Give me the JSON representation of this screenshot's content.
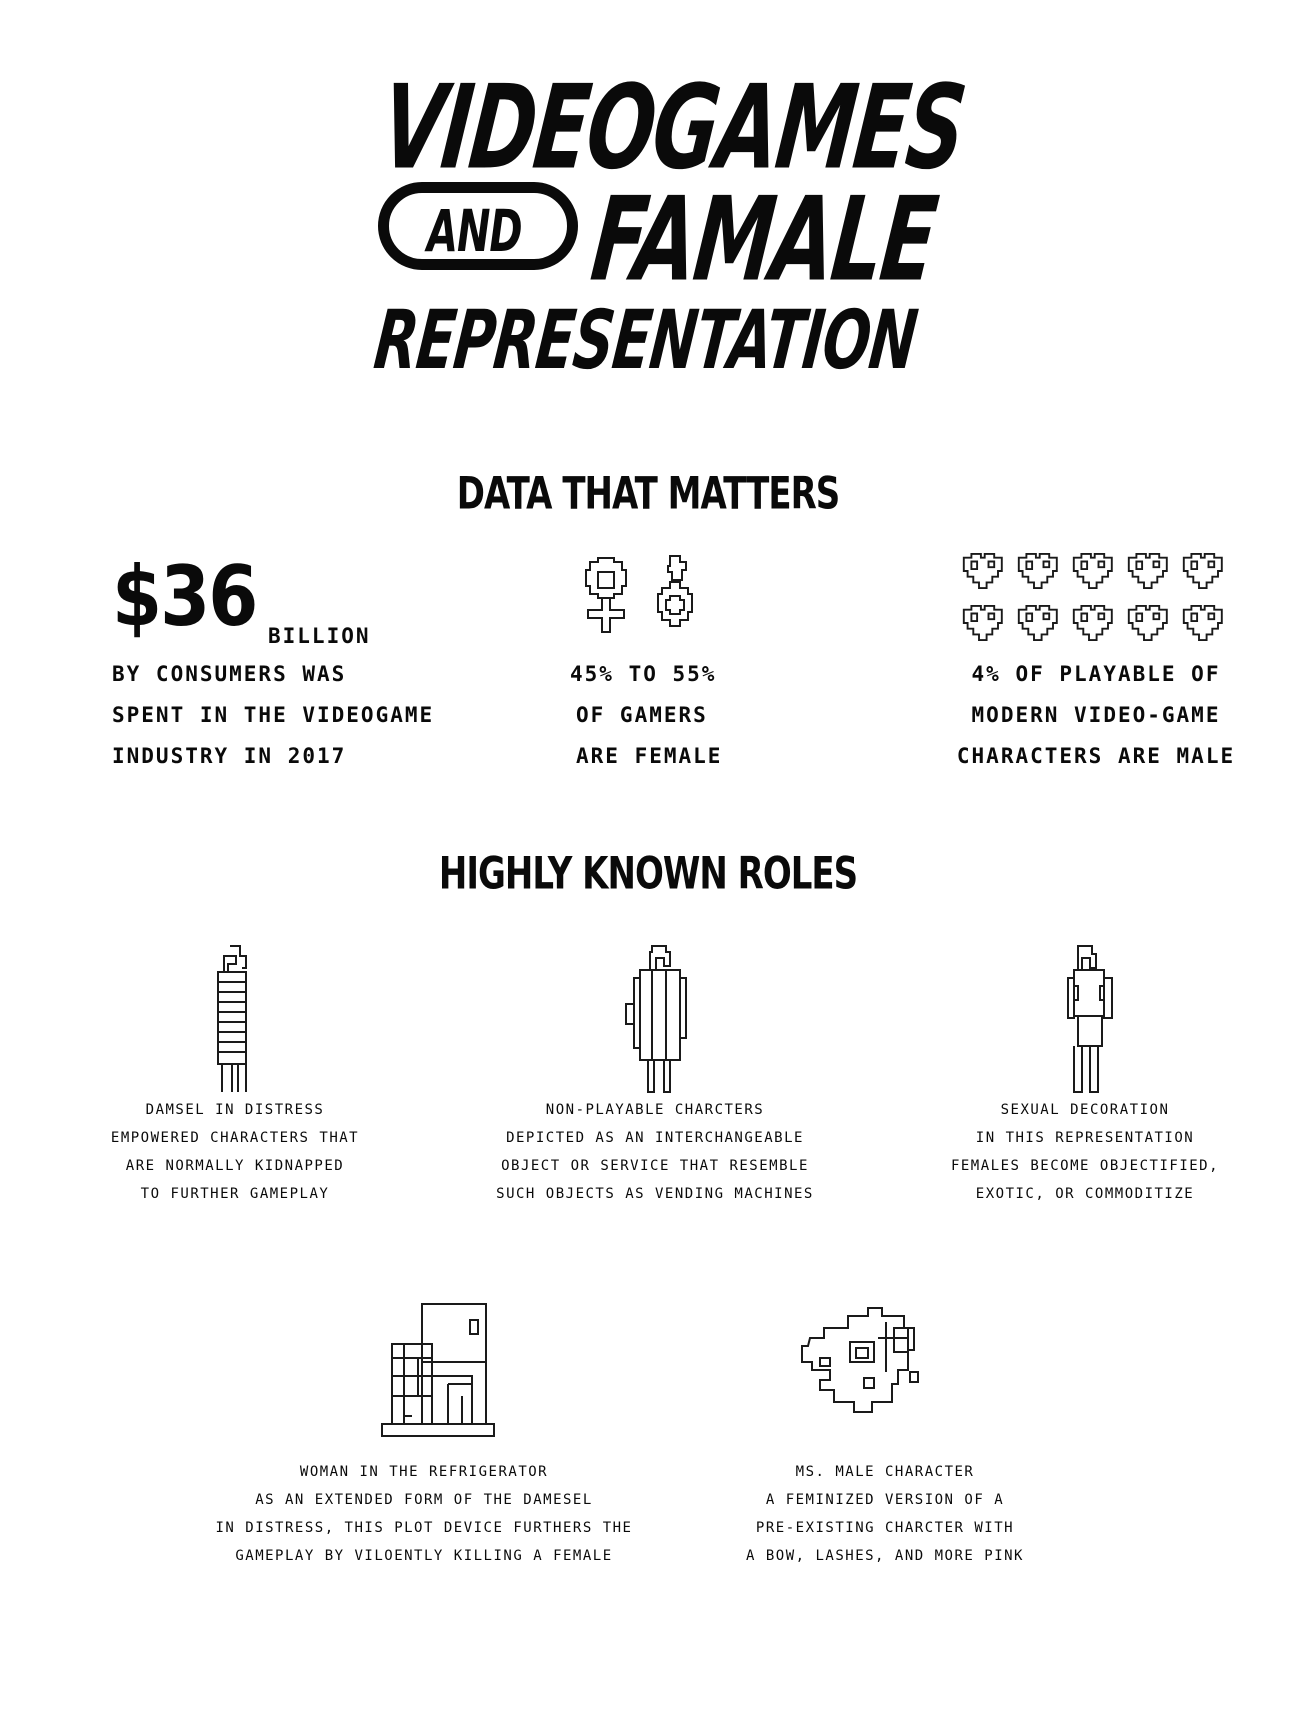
{
  "title": {
    "line1": "VIDEOGAMES",
    "pill_word": "AND",
    "line2": "FAMALE",
    "line3": "REPRESENTATION"
  },
  "sections": {
    "data_heading": "DATA THAT MATTERS",
    "roles_heading": "HIGHLY KNOWN ROLES"
  },
  "stats": {
    "spending": {
      "amount": "$36",
      "unit": "BILLION",
      "lines": [
        "BY CONSUMERS WAS",
        "SPENT IN THE VIDEOGAME",
        "INDUSTRY IN  2017"
      ]
    },
    "gamers": {
      "icon": "female-male-symbols-icon",
      "lines": [
        "45% TO 55%",
        "OF GAMERS",
        "ARE FEMALE"
      ]
    },
    "characters": {
      "icon": "pixel-hearts-icon",
      "hearts_count": 10,
      "lines": [
        "4% OF PLAYABLE OF",
        "MODERN VIDEO-GAME",
        "CHARACTERS ARE MALE"
      ]
    }
  },
  "roles": [
    {
      "icon": "damsel-figure-icon",
      "lines": [
        "DAMSEL IN DISTRESS",
        "EMPOWERED CHARACTERS THAT",
        "ARE NORMALLY KIDNAPPED",
        "TO FURTHER GAMEPLAY"
      ]
    },
    {
      "icon": "npc-figure-icon",
      "lines": [
        "NON-PLAYABLE CHARCTERS",
        "DEPICTED AS AN INTERCHANGEABLE",
        "OBJECT OR SERVICE THAT RESEMBLE",
        "SUCH OBJECTS AS VENDING MACHINES"
      ]
    },
    {
      "icon": "decoration-figure-icon",
      "lines": [
        "SEXUAL DECORATION",
        "IN THIS REPRESENTATION",
        "FEMALES BECOME OBJECTIFIED,",
        "EXOTIC, OR COMMODITIZE"
      ]
    },
    {
      "icon": "refrigerator-icon",
      "lines": [
        "WOMAN IN THE REFRIGERATOR",
        "AS AN EXTENDED FORM OF THE DAMESEL",
        "IN DISTRESS, THIS PLOT DEVICE FURTHERS THE",
        "GAMEPLAY BY VILOENTLY KILLING A FEMALE"
      ]
    },
    {
      "icon": "ms-male-character-icon",
      "lines": [
        "MS. MALE CHARACTER",
        "A FEMINIZED VERSION OF A",
        "PRE-EXISTING CHARCTER WITH",
        "A BOW, LASHES, AND MORE PINK"
      ]
    }
  ]
}
